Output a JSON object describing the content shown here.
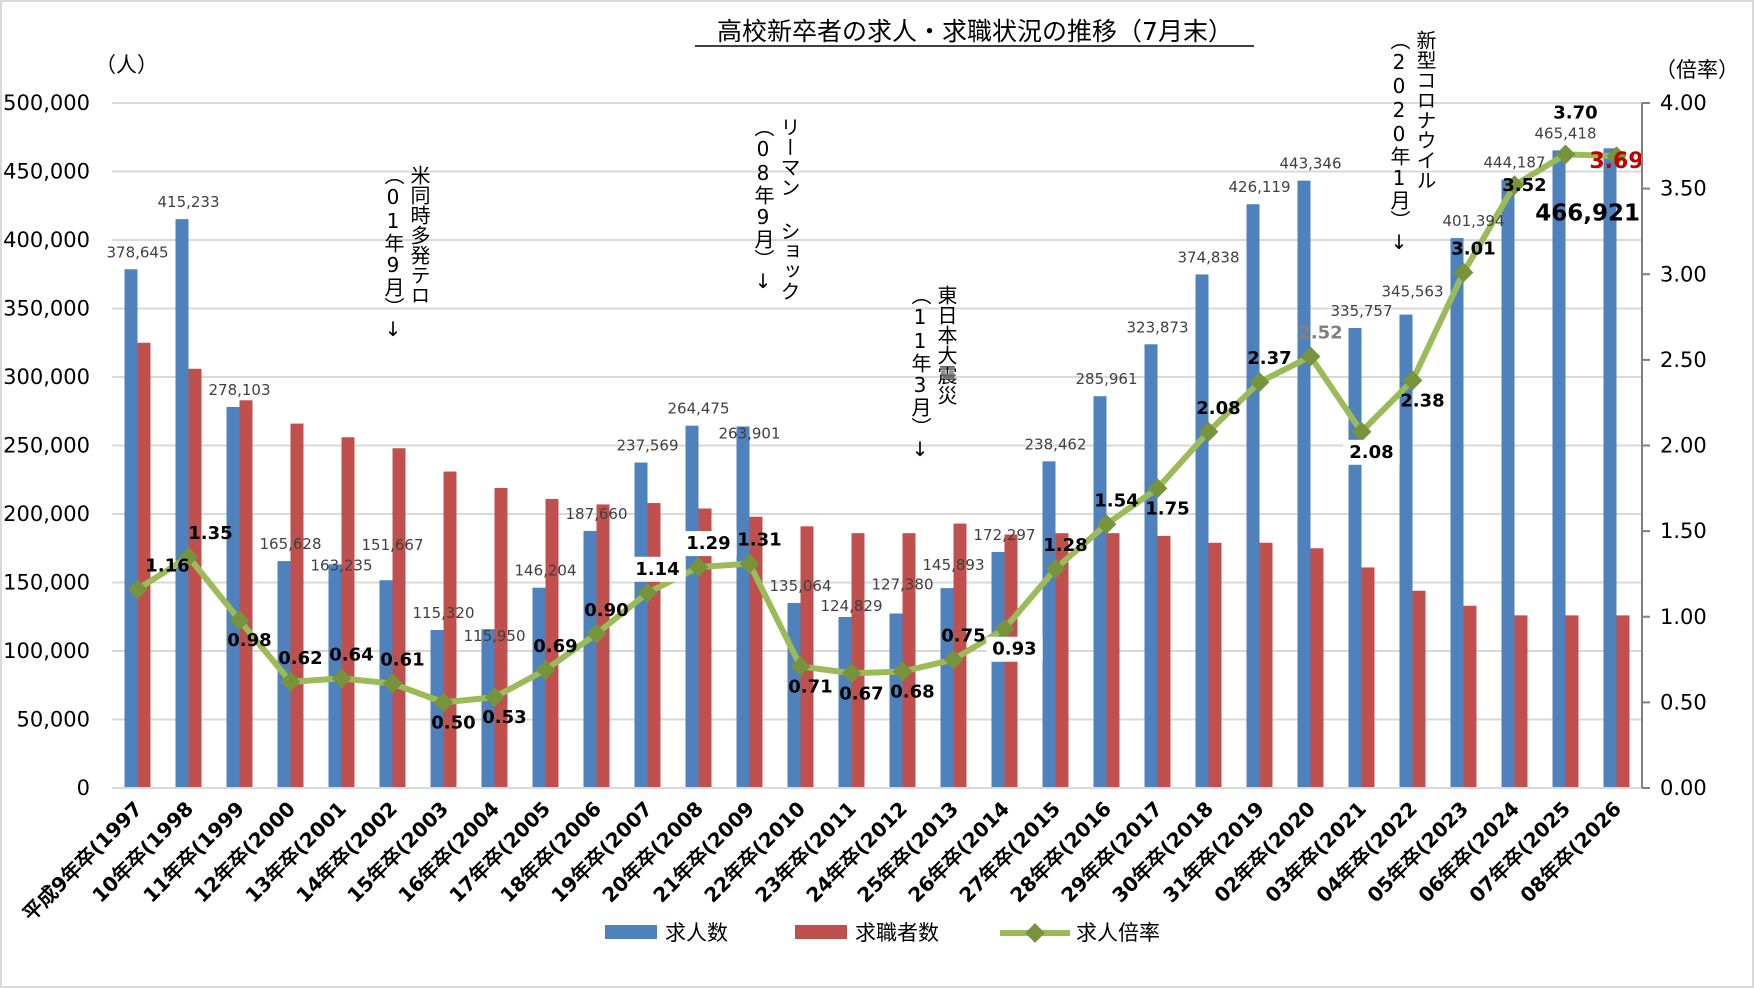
{
  "chart_data": {
    "type": "bar",
    "title": "高校新卒者の求人・求職状況の推移（7月末）",
    "ylabel_left": "（人）",
    "ylabel_right": "（倍率）",
    "ylim_left": [
      0,
      500000
    ],
    "ylim_right": [
      0,
      4.0
    ],
    "left_ticks": [
      "0",
      "50,000",
      "100,000",
      "150,000",
      "200,000",
      "250,000",
      "300,000",
      "350,000",
      "400,000",
      "450,000",
      "500,000"
    ],
    "right_ticks": [
      "0.00",
      "0.50",
      "1.00",
      "1.50",
      "2.00",
      "2.50",
      "3.00",
      "3.50",
      "4.00"
    ],
    "grid": true,
    "legend_position": "bottom",
    "categories": [
      "平成9年卒(1997",
      "10年卒(1998",
      "11年卒(1999",
      "12年卒(2000",
      "13年卒(2001",
      "14年卒(2002",
      "15年卒(2003",
      "16年卒(2004",
      "17年卒(2005",
      "18年卒(2006",
      "19年卒(2007",
      "20年卒(2008",
      "21年卒(2009",
      "22年卒(2010",
      "23年卒(2011",
      "24年卒(2012",
      "25年卒(2013",
      "26年卒(2014",
      "27年卒(2015",
      "28年卒(2016",
      "29年卒(2017",
      "30年卒(2018",
      "31年卒(2019",
      "02年卒(2020",
      "03年卒(2021",
      "04年卒(2022",
      "05年卒(2023",
      "06年卒(2024",
      "07年卒(2025",
      "08年卒(2026"
    ],
    "series": [
      {
        "name": "求人数",
        "type": "bar",
        "axis": "left",
        "color": "#4f81bd",
        "values": [
          378645,
          415233,
          278103,
          165628,
          163235,
          151667,
          115320,
          115950,
          146204,
          187660,
          237569,
          264475,
          263901,
          135064,
          124829,
          127380,
          145893,
          172297,
          238462,
          285961,
          323873,
          374838,
          426119,
          443346,
          335757,
          345563,
          401394,
          444187,
          465418,
          466921
        ],
        "labels": [
          "378,645",
          "415,233",
          "278,103",
          "165,628",
          "163,235",
          "151,667",
          "115,320",
          "115,950",
          "146,204",
          "187,660",
          "237,569",
          "264,475",
          "263,901",
          "135,064",
          "124,829",
          "127,380",
          "145,893",
          "172,297",
          "238,462",
          "285,961",
          "323,873",
          "374,838",
          "426,119",
          "443,346",
          "335,757",
          "345,563",
          "401,394",
          "444,187",
          "465,418",
          "466,921"
        ]
      },
      {
        "name": "求職者数",
        "type": "bar",
        "axis": "left",
        "color": "#c0504d",
        "values": [
          325000,
          306000,
          283000,
          266000,
          256000,
          248000,
          231000,
          219000,
          211000,
          207000,
          208000,
          204000,
          198000,
          191000,
          186000,
          186000,
          193000,
          185000,
          186000,
          186000,
          184000,
          179000,
          179000,
          175000,
          161000,
          144000,
          133000,
          126000,
          126000,
          126000
        ]
      },
      {
        "name": "求人倍率",
        "type": "line",
        "axis": "right",
        "color": "#9bbb59",
        "marker_color": "#77933c",
        "values": [
          1.16,
          1.35,
          0.98,
          0.62,
          0.64,
          0.61,
          0.5,
          0.53,
          0.69,
          0.9,
          1.14,
          1.29,
          1.31,
          0.71,
          0.67,
          0.68,
          0.75,
          0.93,
          1.28,
          1.54,
          1.75,
          2.08,
          2.37,
          2.52,
          2.08,
          2.38,
          3.01,
          3.52,
          3.7,
          3.69
        ],
        "labels": [
          "1.16",
          "1.35",
          "0.98",
          "0.62",
          "0.64",
          "0.61",
          "0.50",
          "0.53",
          "0.69",
          "0.90",
          "1.14",
          "1.29",
          "1.31",
          "0.71",
          "0.67",
          "0.68",
          "0.75",
          "0.93",
          "1.28",
          "1.54",
          "1.75",
          "2.08",
          "2.37",
          "2.52",
          "2.08",
          "2.38",
          "3.01",
          "3.52",
          "3.70",
          "3.69"
        ]
      }
    ],
    "label_colors": {
      "gray_value_labels": [
        "426,119",
        "443,346"
      ],
      "gray_ratio_labels": [
        "2.52"
      ],
      "red_ratio_labels": [
        "3.69"
      ],
      "red": "#c00000",
      "gray": "#808080"
    },
    "annotations": [
      {
        "text": "米同時多発テロ",
        "sub": "（01年9月）↓"
      },
      {
        "text": "リーマン ショック",
        "sub": "（08年9月）↓"
      },
      {
        "text": "東日本大震災",
        "sub": "（11年3月）↓"
      },
      {
        "text": "新型コロナウイル",
        "sub": "（2020年1月）↓"
      }
    ]
  }
}
